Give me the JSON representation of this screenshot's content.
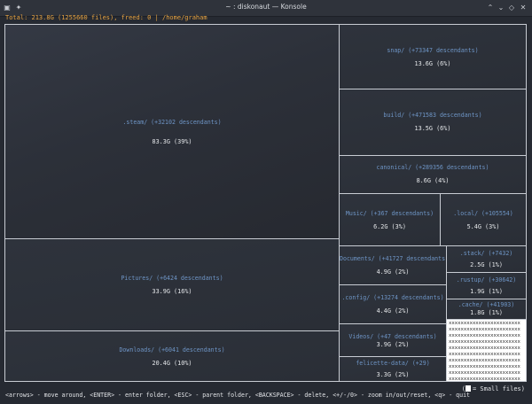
{
  "window": {
    "title": "~ : diskonaut — Konsole"
  },
  "status_line": "Total: 213.8G (1255660 files), freed: 0 | /home/graham",
  "cells": [
    {
      "name": "cell-steam",
      "label": ".steam/ (+32102 descendants)",
      "size": "83.3G (39%)"
    },
    {
      "name": "cell-pictures",
      "label": "Pictures/ (+6424 descendants)",
      "size": "33.9G (16%)"
    },
    {
      "name": "cell-downloads",
      "label": "Downloads/ (+6041 descendants)",
      "size": "20.4G (10%)"
    },
    {
      "name": "cell-snap",
      "label": "snap/ (+73347 descendants)",
      "size": "13.6G (6%)"
    },
    {
      "name": "cell-build",
      "label": "build/ (+471583 descendants)",
      "size": "13.5G (6%)"
    },
    {
      "name": "cell-canonical",
      "label": "canonical/ (+289356 descendants)",
      "size": "8.6G (4%)"
    },
    {
      "name": "cell-music",
      "label": "Music/ (+367 descendants)",
      "size": "6.2G (3%)"
    },
    {
      "name": "cell-local",
      "label": ".local/ (+105554)",
      "size": "5.4G (3%)"
    },
    {
      "name": "cell-documents",
      "label": "Documents/ (+41727 descendants)",
      "size": "4.9G (2%)"
    },
    {
      "name": "cell-config",
      "label": ".config/ (+13274 descendants)",
      "size": "4.4G (2%)"
    },
    {
      "name": "cell-videos",
      "label": "Videos/ (+47 descendants)",
      "size": "3.9G (2%)"
    },
    {
      "name": "cell-felicette",
      "label": "felicette-data/ (+29)",
      "size": "3.3G (2%)"
    },
    {
      "name": "cell-stack",
      "label": ".stack/ (+7432)",
      "size": "2.5G (1%)"
    },
    {
      "name": "cell-rustup",
      "label": ".rustup/ (+30642)",
      "size": "1.9G (1%)"
    },
    {
      "name": "cell-cache",
      "label": ".cache/ (+41903)",
      "size": "1.8G (1%)"
    }
  ],
  "small_files": {
    "pattern_char": "x"
  },
  "legend": {
    "text": "= Small files)",
    "open_paren": "("
  },
  "help_line": "<arrows> - move around, <ENTER> - enter folder, <ESC> - parent folder, <BACKSPACE> - delete, <+/-/0> - zoom in/out/reset, <q> - quit"
}
